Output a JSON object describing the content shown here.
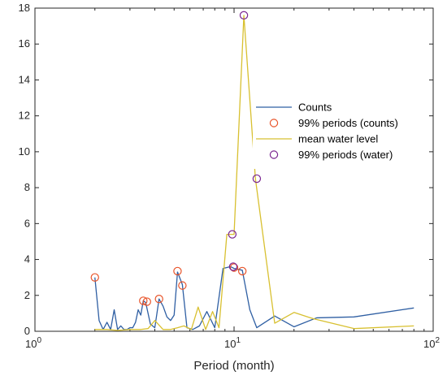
{
  "chart_data": {
    "type": "line",
    "title": "",
    "xlabel": "Period (month)",
    "ylabel": "",
    "xscale": "log",
    "xlim": [
      1,
      100
    ],
    "ylim": [
      0,
      18
    ],
    "xticks": [
      1,
      10,
      100
    ],
    "xtick_labels": [
      [
        "10",
        "0"
      ],
      [
        "10",
        "1"
      ],
      [
        "10",
        "2"
      ]
    ],
    "yticks": [
      0,
      2,
      4,
      6,
      8,
      10,
      12,
      14,
      16,
      18
    ],
    "ytick_labels": [
      "0",
      "2",
      "4",
      "6",
      "8",
      "10",
      "12",
      "14",
      "16",
      "18"
    ],
    "grid": false,
    "legend_position": "right",
    "series": [
      {
        "name": "Counts",
        "kind": "line",
        "color": "#2f5fa3",
        "x": [
          2.0,
          2.1,
          2.2,
          2.3,
          2.4,
          2.5,
          2.6,
          2.7,
          2.8,
          2.9,
          3.0,
          3.1,
          3.2,
          3.3,
          3.4,
          3.5,
          3.6,
          3.8,
          4.0,
          4.2,
          4.4,
          4.6,
          4.8,
          5.0,
          5.2,
          5.5,
          5.8,
          6.2,
          6.7,
          7.3,
          8.0,
          8.8,
          9.6,
          10.0,
          11.0,
          12.0,
          13.0,
          16.0,
          20.0,
          26.0,
          40.0,
          80.0
        ],
        "y": [
          3.0,
          0.6,
          0.1,
          0.5,
          0.1,
          1.2,
          0.1,
          0.3,
          0.1,
          0.1,
          0.2,
          0.2,
          0.5,
          1.2,
          0.9,
          1.7,
          1.6,
          0.4,
          0.2,
          1.8,
          1.4,
          0.8,
          0.6,
          0.9,
          3.3,
          2.6,
          0.2,
          0.1,
          0.3,
          1.1,
          0.2,
          3.5,
          3.6,
          3.5,
          3.4,
          1.2,
          0.2,
          0.85,
          0.25,
          0.75,
          0.8,
          1.3
        ]
      },
      {
        "name": "99% periods (counts)",
        "kind": "marker",
        "color": "#e8542a",
        "x": [
          2.0,
          3.5,
          3.65,
          4.2,
          5.2,
          5.5,
          10.0,
          11.0
        ],
        "y": [
          3.0,
          1.7,
          1.65,
          1.8,
          3.35,
          2.55,
          3.55,
          3.35
        ]
      },
      {
        "name": "mean water level",
        "kind": "line",
        "color": "#d8c030",
        "x": [
          2.0,
          2.3,
          2.6,
          3.0,
          3.4,
          3.7,
          4.0,
          4.4,
          4.8,
          5.2,
          5.6,
          6.1,
          6.6,
          7.2,
          7.8,
          8.4,
          9.2,
          10.0,
          11.2,
          12.8,
          16.0,
          20.0,
          25.0,
          40.0,
          80.0
        ],
        "y": [
          0.1,
          0.1,
          0.05,
          0.1,
          0.1,
          0.15,
          0.6,
          0.1,
          0.1,
          0.2,
          0.3,
          0.1,
          1.35,
          0.1,
          1.1,
          0.2,
          5.4,
          5.4,
          17.6,
          8.5,
          0.45,
          1.05,
          0.7,
          0.15,
          0.3
        ]
      },
      {
        "name": "99% periods (water)",
        "kind": "marker",
        "color": "#7a2590",
        "x": [
          9.8,
          9.9,
          11.2,
          13.0
        ],
        "y": [
          5.4,
          3.6,
          17.6,
          8.5
        ]
      }
    ]
  }
}
